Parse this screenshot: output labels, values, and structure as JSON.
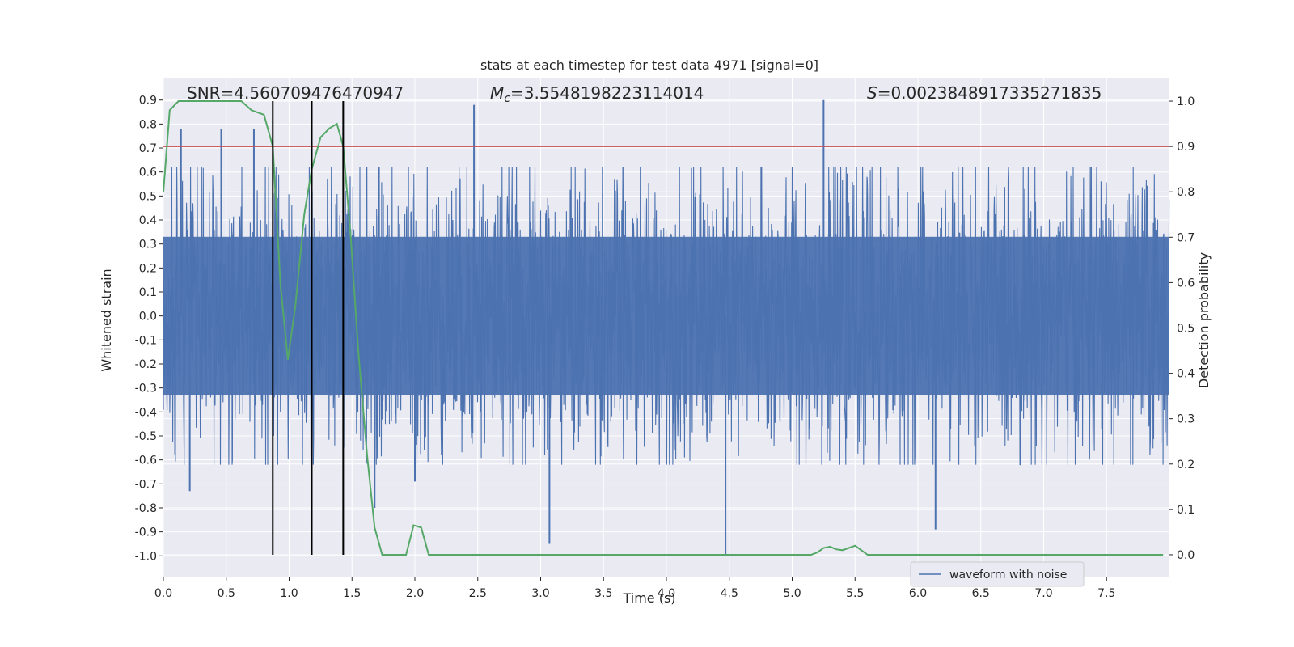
{
  "chart_data": {
    "type": "line",
    "title": "stats at each timestep for test data 4971 [signal=0]",
    "xlabel": "Time (s)",
    "ylabel_left": "Whitened strain",
    "ylabel_right": "Detection probability",
    "xlim": [
      0.0,
      8.0
    ],
    "ylim_left": [
      -1.09,
      0.99
    ],
    "ylim_right": [
      -0.05,
      1.05
    ],
    "x_ticks": [
      "0.0",
      "0.5",
      "1.0",
      "1.5",
      "2.0",
      "2.5",
      "3.0",
      "3.5",
      "4.0",
      "4.5",
      "5.0",
      "5.5",
      "6.0",
      "6.5",
      "7.0",
      "7.5"
    ],
    "y_left_ticks": [
      "0.9",
      "0.8",
      "0.7",
      "0.6",
      "0.5",
      "0.4",
      "0.3",
      "0.2",
      "0.1",
      "0.0",
      "-0.1",
      "-0.2",
      "-0.3",
      "-0.4",
      "-0.5",
      "-0.6",
      "-0.7",
      "-0.8",
      "-0.9",
      "-1.0"
    ],
    "y_right_ticks": [
      "1.0",
      "0.9",
      "0.8",
      "0.7",
      "0.6",
      "0.5",
      "0.4",
      "0.3",
      "0.2",
      "0.1",
      "0.0"
    ],
    "grid": true,
    "legend_position": "bottom-right",
    "annotations": {
      "snr_prefix": "SNR=",
      "snr": "4.560709476470947",
      "mc_symbol": "M",
      "mc_sub": "c",
      "mc_value": "=3.5548198223114014",
      "s_symbol": "S",
      "s_value": "=0.0023848917335271835"
    },
    "threshold_line": {
      "axis": "right",
      "value": 0.9,
      "color": "#c44e52"
    },
    "vertical_lines": [
      0.87,
      1.18,
      1.43
    ],
    "colors": {
      "waveform": "#4c72b0",
      "probability": "#55a868",
      "threshold": "#c44e52",
      "vlines": "#000000",
      "background": "#eaeaf2",
      "grid": "#ffffff"
    },
    "series": [
      {
        "name": "waveform with noise",
        "axis": "left",
        "kind": "noise",
        "core_amplitude": 0.33,
        "peaks": [
          {
            "x": 2.47,
            "y": 0.88
          },
          {
            "x": 5.25,
            "y": 0.9
          },
          {
            "x": 0.14,
            "y": 0.78
          },
          {
            "x": 0.46,
            "y": 0.78
          },
          {
            "x": 0.72,
            "y": 0.78
          },
          {
            "x": 3.07,
            "y": -0.95
          },
          {
            "x": 4.47,
            "y": -1.0
          },
          {
            "x": 6.14,
            "y": -0.89
          },
          {
            "x": 1.68,
            "y": -0.8
          },
          {
            "x": 0.21,
            "y": -0.73
          },
          {
            "x": 2.0,
            "y": -0.69
          }
        ]
      },
      {
        "axis": "right",
        "kind": "line",
        "x": [
          0.0,
          0.05,
          0.12,
          0.2,
          0.3,
          0.4,
          0.5,
          0.55,
          0.62,
          0.7,
          0.8,
          0.87,
          0.93,
          0.99,
          1.05,
          1.12,
          1.18,
          1.25,
          1.32,
          1.38,
          1.43,
          1.49,
          1.55,
          1.62,
          1.68,
          1.74,
          1.81,
          1.87,
          1.93,
          1.99,
          2.05,
          2.11,
          2.18,
          2.24,
          2.3,
          2.4,
          2.5,
          2.6,
          2.8,
          3.0,
          3.2,
          3.4,
          3.6,
          3.8,
          4.0,
          4.2,
          4.3,
          4.4,
          4.47,
          4.55,
          4.7,
          4.9,
          5.0,
          5.1,
          5.15,
          5.2,
          5.25,
          5.3,
          5.35,
          5.4,
          5.45,
          5.5,
          5.55,
          5.6,
          5.65,
          5.7,
          5.8,
          6.0,
          6.2,
          6.4,
          6.6,
          6.8,
          7.0,
          7.2,
          7.4,
          7.6,
          7.8,
          7.95
        ],
        "y": [
          0.8,
          0.98,
          1.0,
          1.0,
          1.0,
          1.0,
          1.0,
          1.0,
          1.0,
          0.98,
          0.97,
          0.9,
          0.6,
          0.43,
          0.55,
          0.75,
          0.85,
          0.92,
          0.94,
          0.95,
          0.9,
          0.7,
          0.45,
          0.22,
          0.06,
          0.0,
          0.0,
          0.0,
          0.0,
          0.065,
          0.06,
          0.0,
          0.0,
          0.0,
          0.0,
          0.0,
          0.0,
          0.0,
          0.0,
          0.0,
          0.0,
          0.0,
          0.0,
          0.0,
          0.0,
          0.0,
          0.0,
          0.0,
          0.0,
          0.0,
          0.0,
          0.0,
          0.0,
          0.0,
          0.0,
          0.005,
          0.015,
          0.018,
          0.012,
          0.01,
          0.015,
          0.02,
          0.01,
          0.0,
          0.0,
          0.0,
          0.0,
          0.0,
          0.0,
          0.0,
          0.0,
          0.0,
          0.0,
          0.0,
          0.0,
          0.0,
          0.0,
          0.0
        ]
      }
    ]
  }
}
